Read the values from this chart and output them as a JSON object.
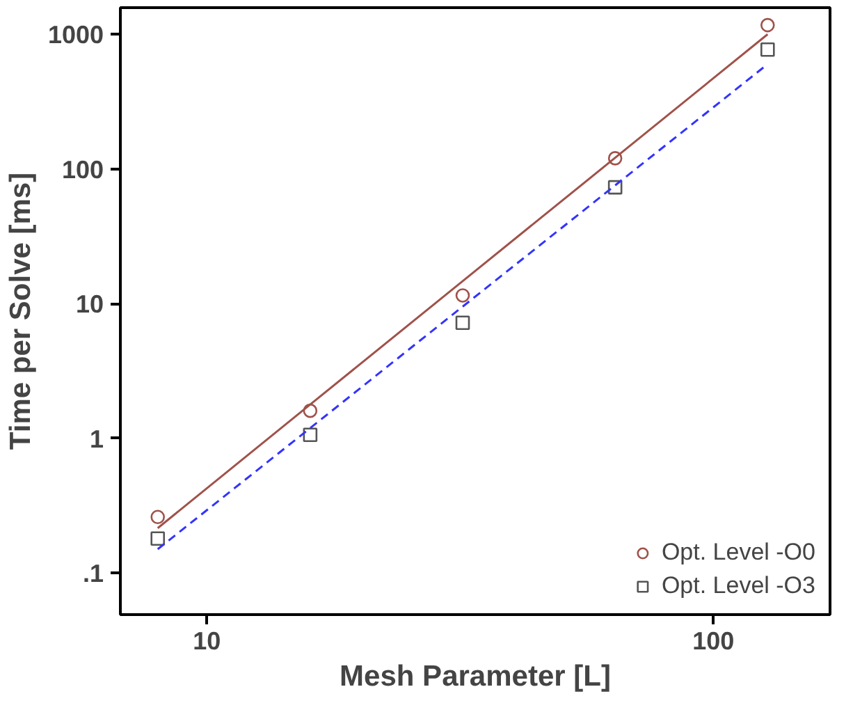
{
  "chart_data": {
    "type": "scatter",
    "xlabel": "Mesh Parameter [L]",
    "ylabel": "Time per Solve [ms]",
    "log": "xy",
    "xlim": [
      6.75,
      170
    ],
    "ylim": [
      0.049,
      1577
    ],
    "xticks": [
      10,
      100
    ],
    "yticks": [
      {
        "value": 0.1,
        "label": ".1"
      },
      1,
      10,
      100,
      1000
    ],
    "grid": false,
    "legend": "bottom right",
    "x": [
      8,
      16,
      32,
      64,
      128
    ],
    "series": [
      {
        "name": "Opt. Level -O0",
        "color": "#a0524a",
        "marker": "circle",
        "values": [
          0.26,
          1.6,
          11.5,
          120,
          1170
        ]
      },
      {
        "name": "Opt. Level -O3",
        "color": "#555555",
        "marker": "square",
        "values": [
          0.18,
          1.06,
          7.2,
          73,
          770
        ]
      },
      {
        "type": "line",
        "color": "#a0524a",
        "line_style": "solid",
        "values": [
          0.215,
          1.78,
          14.7,
          121,
          1000
        ]
      },
      {
        "type": "line",
        "color": "#3333ff",
        "line_style": "dashed",
        "values": [
          0.15,
          1.19,
          9.5,
          75.5,
          600
        ]
      }
    ]
  }
}
